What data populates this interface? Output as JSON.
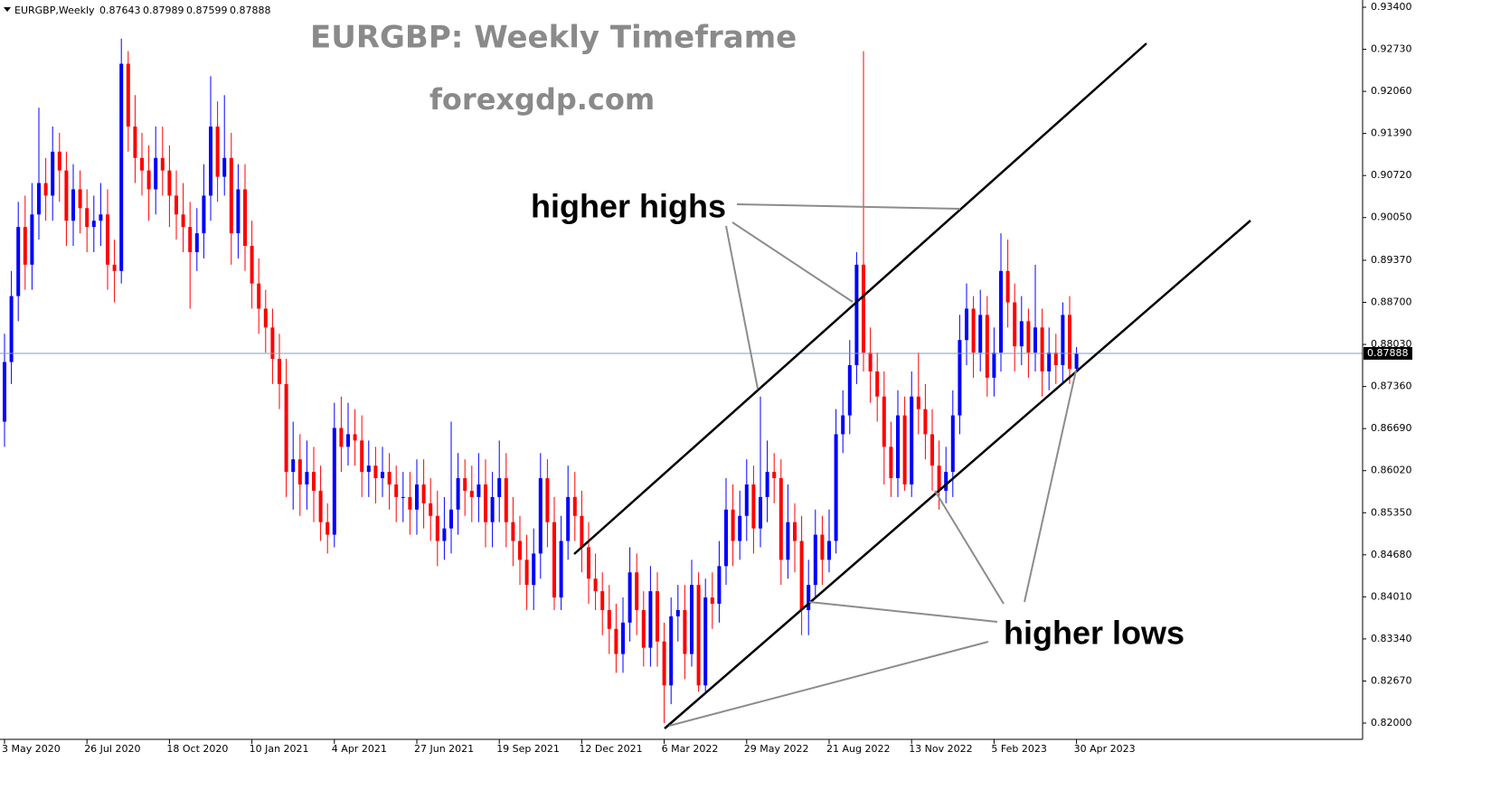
{
  "chart_data": {
    "type": "candlestick",
    "title": "EURGBP: Weekly Timeframe",
    "subtitle": "forexgdp.com",
    "annotations": [
      "higher highs",
      "higher lows"
    ],
    "up_color": "#0000ff",
    "down_color": "#ff0000",
    "price_line_color": "#7f9fbf",
    "categories": [
      "3 May 2020",
      null,
      null,
      null,
      null,
      null,
      null,
      null,
      null,
      null,
      null,
      null,
      "26 Jul 2020",
      null,
      null,
      null,
      null,
      null,
      null,
      null,
      null,
      null,
      null,
      null,
      "18 Oct 2020",
      null,
      null,
      null,
      null,
      null,
      null,
      null,
      null,
      null,
      null,
      null,
      "10 Jan 2021",
      null,
      null,
      null,
      null,
      null,
      null,
      null,
      null,
      null,
      null,
      null,
      "4 Apr 2021",
      null,
      null,
      null,
      null,
      null,
      null,
      null,
      null,
      null,
      null,
      null,
      "27 Jun 2021",
      null,
      null,
      null,
      null,
      null,
      null,
      null,
      null,
      null,
      null,
      null,
      "19 Sep 2021",
      null,
      null,
      null,
      null,
      null,
      null,
      null,
      null,
      null,
      null,
      null,
      "12 Dec 2021",
      null,
      null,
      null,
      null,
      null,
      null,
      null,
      null,
      null,
      null,
      null,
      "6 Mar 2022",
      null,
      null,
      null,
      null,
      null,
      null,
      null,
      null,
      null,
      null,
      null,
      "29 May 2022",
      null,
      null,
      null,
      null,
      null,
      null,
      null,
      null,
      null,
      null,
      null,
      "21 Aug 2022",
      null,
      null,
      null,
      null,
      null,
      null,
      null,
      null,
      null,
      null,
      null,
      "13 Nov 2022",
      null,
      null,
      null,
      null,
      null,
      null,
      null,
      null,
      null,
      null,
      null,
      "5 Feb 2023",
      null,
      null,
      null,
      null,
      null,
      null,
      null,
      null,
      null,
      null,
      null,
      "30 Apr 2023"
    ],
    "series": [
      {
        "name": "EURGBP,Weekly",
        "open": [
          0.868,
          0.8775,
          0.888,
          0.899,
          0.893,
          0.901,
          0.906,
          0.904,
          0.911,
          0.908,
          0.9,
          0.905,
          0.902,
          0.899,
          0.9,
          0.901,
          0.893,
          0.892,
          0.925,
          0.915,
          0.91,
          0.908,
          0.905,
          0.91,
          0.908,
          0.904,
          0.901,
          0.899,
          0.895,
          0.898,
          0.904,
          0.915,
          0.907,
          0.91,
          0.898,
          0.905,
          0.896,
          0.89,
          0.886,
          0.883,
          0.878,
          0.874,
          0.86,
          0.862,
          0.858,
          0.86,
          0.857,
          0.852,
          0.85,
          0.867,
          0.864,
          0.866,
          0.865,
          0.86,
          0.861,
          0.859,
          0.86,
          0.858,
          0.856,
          0.856,
          0.854,
          0.858,
          0.855,
          0.853,
          0.849,
          0.851,
          0.854,
          0.859,
          0.857,
          0.856,
          0.858,
          0.852,
          0.856,
          0.859,
          0.852,
          0.849,
          0.846,
          0.842,
          0.847,
          0.859,
          0.852,
          0.84,
          0.849,
          0.856,
          0.853,
          0.848,
          0.843,
          0.841,
          0.838,
          0.835,
          0.831,
          0.836,
          0.844,
          0.838,
          0.832,
          0.841,
          0.833,
          0.826,
          0.837,
          0.838,
          0.831,
          0.842,
          0.826,
          0.84,
          0.839,
          0.845,
          0.854,
          0.849,
          0.853,
          0.858,
          0.851,
          0.856,
          0.86,
          0.859,
          0.846,
          0.852,
          0.849,
          0.838,
          0.842,
          0.85,
          0.846,
          0.849,
          0.866,
          0.869,
          0.877,
          0.893,
          0.879,
          0.876,
          0.872,
          0.864,
          0.859,
          0.869,
          0.858,
          0.872,
          0.87,
          0.866,
          0.861,
          0.857,
          0.86,
          0.869,
          0.881,
          0.886,
          0.879,
          0.885,
          0.875,
          0.879,
          0.892,
          0.887,
          0.88,
          0.884,
          0.879,
          0.883,
          0.876,
          0.879,
          0.877,
          0.885,
          0.87643
        ],
        "high": [
          0.882,
          0.892,
          0.903,
          0.904,
          0.906,
          0.918,
          0.91,
          0.915,
          0.914,
          0.911,
          0.909,
          0.908,
          0.905,
          0.904,
          0.906,
          0.905,
          0.897,
          0.929,
          0.927,
          0.92,
          0.914,
          0.912,
          0.915,
          0.915,
          0.912,
          0.908,
          0.906,
          0.903,
          0.902,
          0.909,
          0.923,
          0.919,
          0.92,
          0.914,
          0.909,
          0.909,
          0.9,
          0.894,
          0.889,
          0.886,
          0.882,
          0.878,
          0.868,
          0.866,
          0.865,
          0.864,
          0.861,
          0.855,
          0.871,
          0.872,
          0.871,
          0.87,
          0.869,
          0.865,
          0.864,
          0.864,
          0.863,
          0.861,
          0.86,
          0.86,
          0.862,
          0.862,
          0.859,
          0.857,
          0.856,
          0.868,
          0.863,
          0.862,
          0.861,
          0.863,
          0.862,
          0.86,
          0.865,
          0.863,
          0.856,
          0.853,
          0.85,
          0.851,
          0.863,
          0.862,
          0.856,
          0.853,
          0.861,
          0.86,
          0.857,
          0.852,
          0.847,
          0.844,
          0.842,
          0.839,
          0.84,
          0.848,
          0.847,
          0.841,
          0.845,
          0.844,
          0.836,
          0.84,
          0.842,
          0.842,
          0.846,
          0.844,
          0.843,
          0.844,
          0.849,
          0.859,
          0.858,
          0.857,
          0.862,
          0.861,
          0.872,
          0.865,
          0.863,
          0.862,
          0.858,
          0.855,
          0.853,
          0.846,
          0.854,
          0.853,
          0.854,
          0.87,
          0.873,
          0.881,
          0.895,
          0.927,
          0.883,
          0.879,
          0.876,
          0.868,
          0.873,
          0.872,
          0.876,
          0.879,
          0.874,
          0.87,
          0.865,
          0.864,
          0.873,
          0.885,
          0.89,
          0.888,
          0.889,
          0.888,
          0.883,
          0.898,
          0.897,
          0.89,
          0.888,
          0.886,
          0.893,
          0.886,
          0.883,
          0.882,
          0.887,
          0.888,
          0.87989
        ],
        "low": [
          0.864,
          0.874,
          0.884,
          0.889,
          0.889,
          0.897,
          0.9,
          0.9,
          0.903,
          0.896,
          0.896,
          0.898,
          0.895,
          0.895,
          0.896,
          0.889,
          0.887,
          0.89,
          0.911,
          0.906,
          0.904,
          0.9,
          0.901,
          0.904,
          0.899,
          0.897,
          0.895,
          0.886,
          0.892,
          0.894,
          0.9,
          0.903,
          0.904,
          0.893,
          0.894,
          0.892,
          0.886,
          0.882,
          0.879,
          0.874,
          0.87,
          0.856,
          0.854,
          0.853,
          0.854,
          0.852,
          0.849,
          0.847,
          0.848,
          0.86,
          0.861,
          0.861,
          0.856,
          0.856,
          0.855,
          0.856,
          0.854,
          0.852,
          0.852,
          0.85,
          0.85,
          0.851,
          0.849,
          0.845,
          0.846,
          0.847,
          0.85,
          0.853,
          0.852,
          0.852,
          0.848,
          0.848,
          0.852,
          0.848,
          0.845,
          0.842,
          0.838,
          0.838,
          0.843,
          0.848,
          0.838,
          0.838,
          0.846,
          0.849,
          0.844,
          0.839,
          0.838,
          0.834,
          0.831,
          0.828,
          0.828,
          0.833,
          0.834,
          0.829,
          0.829,
          0.829,
          0.82,
          0.823,
          0.833,
          0.827,
          0.829,
          0.825,
          0.825,
          0.835,
          0.836,
          0.842,
          0.845,
          0.846,
          0.849,
          0.847,
          0.848,
          0.852,
          0.855,
          0.842,
          0.843,
          0.844,
          0.834,
          0.834,
          0.84,
          0.842,
          0.844,
          0.847,
          0.863,
          0.866,
          0.874,
          0.876,
          0.871,
          0.868,
          0.858,
          0.856,
          0.856,
          0.857,
          0.856,
          0.866,
          0.862,
          0.857,
          0.854,
          0.855,
          0.856,
          0.866,
          0.877,
          0.875,
          0.876,
          0.872,
          0.872,
          0.876,
          0.883,
          0.876,
          0.877,
          0.875,
          0.876,
          0.872,
          0.873,
          0.874,
          0.874,
          0.874,
          0.87599
        ],
        "close": [
          0.8775,
          0.888,
          0.899,
          0.893,
          0.901,
          0.906,
          0.904,
          0.911,
          0.908,
          0.9,
          0.905,
          0.902,
          0.899,
          0.9,
          0.901,
          0.893,
          0.892,
          0.925,
          0.915,
          0.91,
          0.908,
          0.905,
          0.91,
          0.908,
          0.904,
          0.901,
          0.899,
          0.895,
          0.898,
          0.904,
          0.915,
          0.907,
          0.91,
          0.898,
          0.905,
          0.896,
          0.89,
          0.886,
          0.883,
          0.878,
          0.874,
          0.86,
          0.862,
          0.858,
          0.86,
          0.857,
          0.852,
          0.85,
          0.867,
          0.864,
          0.866,
          0.865,
          0.86,
          0.861,
          0.859,
          0.86,
          0.858,
          0.856,
          0.856,
          0.854,
          0.858,
          0.855,
          0.853,
          0.849,
          0.851,
          0.854,
          0.859,
          0.857,
          0.856,
          0.858,
          0.852,
          0.856,
          0.859,
          0.852,
          0.849,
          0.846,
          0.842,
          0.847,
          0.859,
          0.852,
          0.84,
          0.849,
          0.856,
          0.853,
          0.848,
          0.843,
          0.841,
          0.838,
          0.835,
          0.831,
          0.836,
          0.844,
          0.838,
          0.832,
          0.841,
          0.833,
          0.826,
          0.837,
          0.838,
          0.831,
          0.842,
          0.826,
          0.84,
          0.839,
          0.845,
          0.854,
          0.849,
          0.853,
          0.858,
          0.851,
          0.856,
          0.86,
          0.859,
          0.846,
          0.852,
          0.849,
          0.838,
          0.842,
          0.85,
          0.846,
          0.849,
          0.866,
          0.869,
          0.877,
          0.893,
          0.879,
          0.876,
          0.872,
          0.864,
          0.859,
          0.869,
          0.858,
          0.872,
          0.87,
          0.866,
          0.861,
          0.857,
          0.86,
          0.869,
          0.881,
          0.886,
          0.879,
          0.885,
          0.875,
          0.879,
          0.892,
          0.887,
          0.88,
          0.884,
          0.879,
          0.883,
          0.876,
          0.879,
          0.877,
          0.885,
          0.87643,
          0.87888
        ]
      }
    ],
    "ylim": [
      0.82,
      0.934
    ],
    "yticks": [
      {
        "value": 0.934,
        "label": "0.93400"
      },
      {
        "value": 0.9273,
        "label": "0.92730"
      },
      {
        "value": 0.9206,
        "label": "0.92060"
      },
      {
        "value": 0.9139,
        "label": "0.91390"
      },
      {
        "value": 0.9072,
        "label": "0.90720"
      },
      {
        "value": 0.9005,
        "label": "0.90050"
      },
      {
        "value": 0.8937,
        "label": "0.89370"
      },
      {
        "value": 0.887,
        "label": "0.88700"
      },
      {
        "value": 0.8803,
        "label": "0.88030"
      },
      {
        "value": 0.8736,
        "label": "0.87360"
      },
      {
        "value": 0.8669,
        "label": "0.86690"
      },
      {
        "value": 0.8602,
        "label": "0.86020"
      },
      {
        "value": 0.8535,
        "label": "0.85350"
      },
      {
        "value": 0.8468,
        "label": "0.84680"
      },
      {
        "value": 0.8401,
        "label": "0.84010"
      },
      {
        "value": 0.8334,
        "label": "0.83340"
      },
      {
        "value": 0.8267,
        "label": "0.82670"
      },
      {
        "value": 0.82,
        "label": "0.82000"
      }
    ]
  }
}
